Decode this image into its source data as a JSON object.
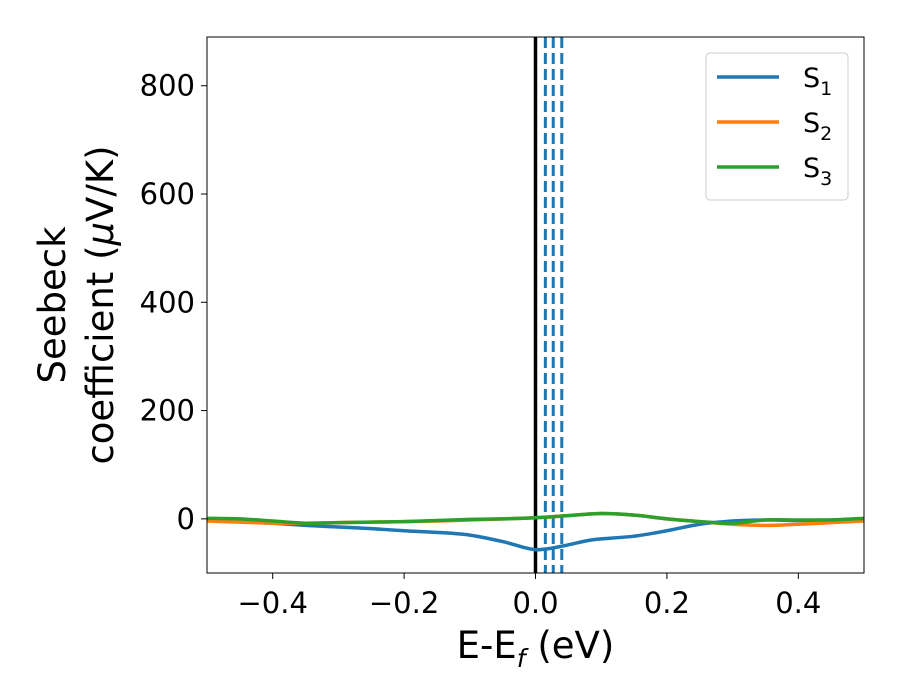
{
  "chart_data": {
    "type": "line",
    "title": "",
    "xlabel": "E-E",
    "xlabel_sub": "f",
    "xlabel_units": " (eV)",
    "ylabel_line1": "Seebeck",
    "ylabel_line2": "coefficient  (",
    "ylabel_mu": "μ",
    "ylabel_units": "V/K)",
    "xlim": [
      -0.5,
      0.5
    ],
    "ylim": [
      -100,
      890
    ],
    "xticks": [
      -0.4,
      -0.2,
      0.0,
      0.2,
      0.4
    ],
    "xtick_labels": [
      "−0.4",
      "−0.2",
      "0.0",
      "0.2",
      "0.4"
    ],
    "yticks": [
      0,
      200,
      400,
      600,
      800
    ],
    "ytick_labels": [
      "0",
      "200",
      "400",
      "600",
      "800"
    ],
    "legend_position": "top-right",
    "grid": false,
    "series": [
      {
        "name": "S",
        "subscript": "1",
        "color": "#1f77b4",
        "x": [
          -0.5,
          -0.45,
          -0.4,
          -0.35,
          -0.3,
          -0.25,
          -0.2,
          -0.15,
          -0.1,
          -0.05,
          -0.02,
          0.0,
          0.02,
          0.05,
          0.08,
          0.1,
          0.15,
          0.2,
          0.25,
          0.3,
          0.35,
          0.4,
          0.45,
          0.5
        ],
        "y": [
          -2,
          -5,
          -8,
          -12,
          -15,
          -18,
          -22,
          -25,
          -30,
          -42,
          -52,
          -57,
          -55,
          -48,
          -40,
          -37,
          -32,
          -22,
          -10,
          -4,
          -2,
          -3,
          -2,
          -1
        ]
      },
      {
        "name": "S",
        "subscript": "2",
        "color": "#ff7f0e",
        "x": [
          -0.5,
          -0.45,
          -0.4,
          -0.35,
          -0.3,
          -0.25,
          -0.2,
          -0.15,
          -0.1,
          -0.05,
          0.0,
          0.05,
          0.1,
          0.15,
          0.2,
          0.25,
          0.3,
          0.35,
          0.4,
          0.45,
          0.5
        ],
        "y": [
          -4,
          -6,
          -8,
          -8,
          -7,
          -6,
          -5,
          -4,
          -2,
          0,
          2,
          6,
          10,
          7,
          0,
          -5,
          -10,
          -12,
          -10,
          -7,
          -4
        ]
      },
      {
        "name": "S",
        "subscript": "3",
        "color": "#2ca02c",
        "x": [
          -0.5,
          -0.45,
          -0.4,
          -0.35,
          -0.3,
          -0.25,
          -0.2,
          -0.15,
          -0.1,
          -0.05,
          0.0,
          0.05,
          0.1,
          0.15,
          0.2,
          0.25,
          0.3,
          0.35,
          0.4,
          0.45,
          0.5
        ],
        "y": [
          1,
          0,
          -4,
          -8,
          -7,
          -6,
          -5,
          -3,
          -1,
          0,
          2,
          6,
          10,
          7,
          0,
          -5,
          -8,
          -2,
          -2,
          -2,
          1
        ]
      }
    ],
    "vlines": [
      {
        "x": 0.0,
        "color": "#000000",
        "style": "solid"
      },
      {
        "x": 0.015,
        "color": "#1f77b4",
        "style": "dashed"
      },
      {
        "x": 0.027,
        "color": "#1f77b4",
        "style": "dashed"
      },
      {
        "x": 0.04,
        "color": "#1f77b4",
        "style": "dashed"
      }
    ]
  }
}
